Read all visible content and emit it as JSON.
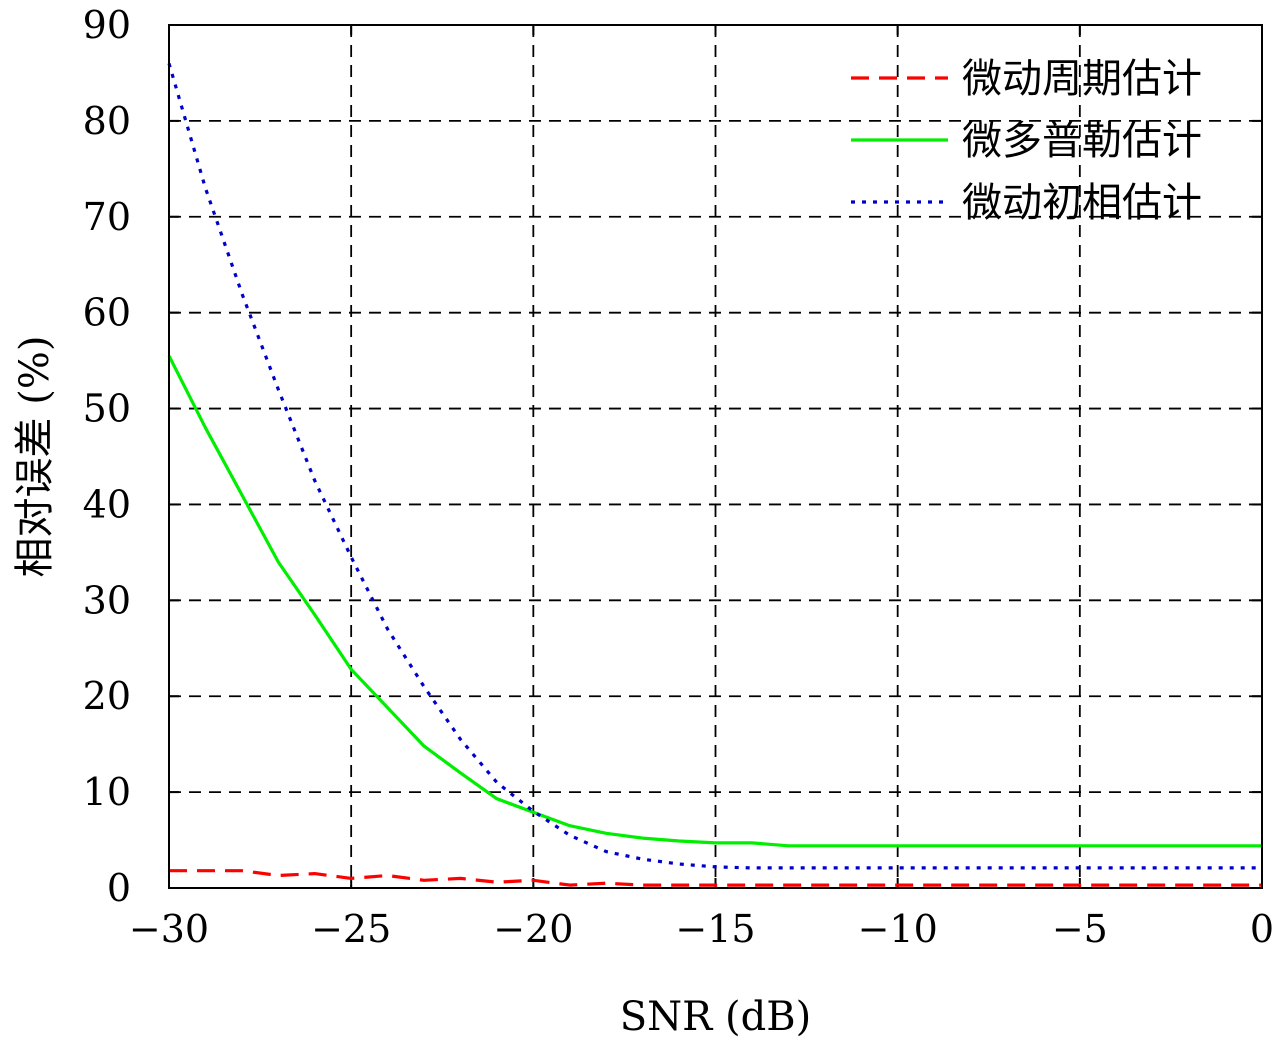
{
  "chart_data": {
    "type": "line",
    "xlabel": "SNR (dB)",
    "ylabel": "相对误差 (%)",
    "xlim": [
      -30,
      0
    ],
    "ylim": [
      0,
      90
    ],
    "xticks": [
      -30,
      -25,
      -20,
      -15,
      -10,
      -5,
      0
    ],
    "xtick_labels": [
      "−30",
      "−25",
      "−20",
      "−15",
      "−10",
      "−5",
      "0"
    ],
    "yticks": [
      0,
      10,
      20,
      30,
      40,
      50,
      60,
      70,
      80,
      90
    ],
    "ytick_labels": [
      "0",
      "10",
      "20",
      "30",
      "40",
      "50",
      "60",
      "70",
      "80",
      "90"
    ],
    "grid": true,
    "legend_position": "top-right",
    "x": [
      -30,
      -29,
      -28,
      -27,
      -26,
      -25,
      -24,
      -23,
      -22,
      -21,
      -20,
      -19,
      -18,
      -17,
      -16,
      -15,
      -14,
      -13,
      -12,
      -11,
      -10,
      -9,
      -8,
      -7,
      -6,
      -5,
      -4,
      -3,
      -2,
      -1,
      0
    ],
    "series": [
      {
        "name": "微动周期估计",
        "color": "#ff0000",
        "style": "dashed",
        "values": [
          1.8,
          1.8,
          1.8,
          1.3,
          1.5,
          1.0,
          1.3,
          0.8,
          1.0,
          0.6,
          0.8,
          0.3,
          0.5,
          0.3,
          0.3,
          0.3,
          0.3,
          0.3,
          0.3,
          0.3,
          0.3,
          0.3,
          0.3,
          0.3,
          0.3,
          0.3,
          0.3,
          0.3,
          0.3,
          0.3,
          0.3
        ]
      },
      {
        "name": "微多普勒估计",
        "color": "#00ee00",
        "style": "solid",
        "values": [
          55.5,
          48.0,
          41.0,
          34.0,
          28.5,
          22.8,
          18.8,
          14.8,
          12.0,
          9.3,
          7.9,
          6.5,
          5.7,
          5.2,
          4.9,
          4.7,
          4.7,
          4.4,
          4.4,
          4.4,
          4.4,
          4.4,
          4.4,
          4.4,
          4.4,
          4.4,
          4.4,
          4.4,
          4.4,
          4.4,
          4.4
        ]
      },
      {
        "name": "微动初相估计",
        "color": "#0000cc",
        "style": "dotted",
        "values": [
          86.0,
          73.0,
          62.0,
          52.0,
          42.5,
          34.5,
          27.0,
          21.0,
          15.5,
          11.0,
          8.0,
          5.5,
          3.8,
          3.0,
          2.5,
          2.2,
          2.1,
          2.1,
          2.1,
          2.1,
          2.1,
          2.1,
          2.1,
          2.1,
          2.1,
          2.1,
          2.1,
          2.1,
          2.1,
          2.1,
          2.1
        ]
      }
    ]
  }
}
